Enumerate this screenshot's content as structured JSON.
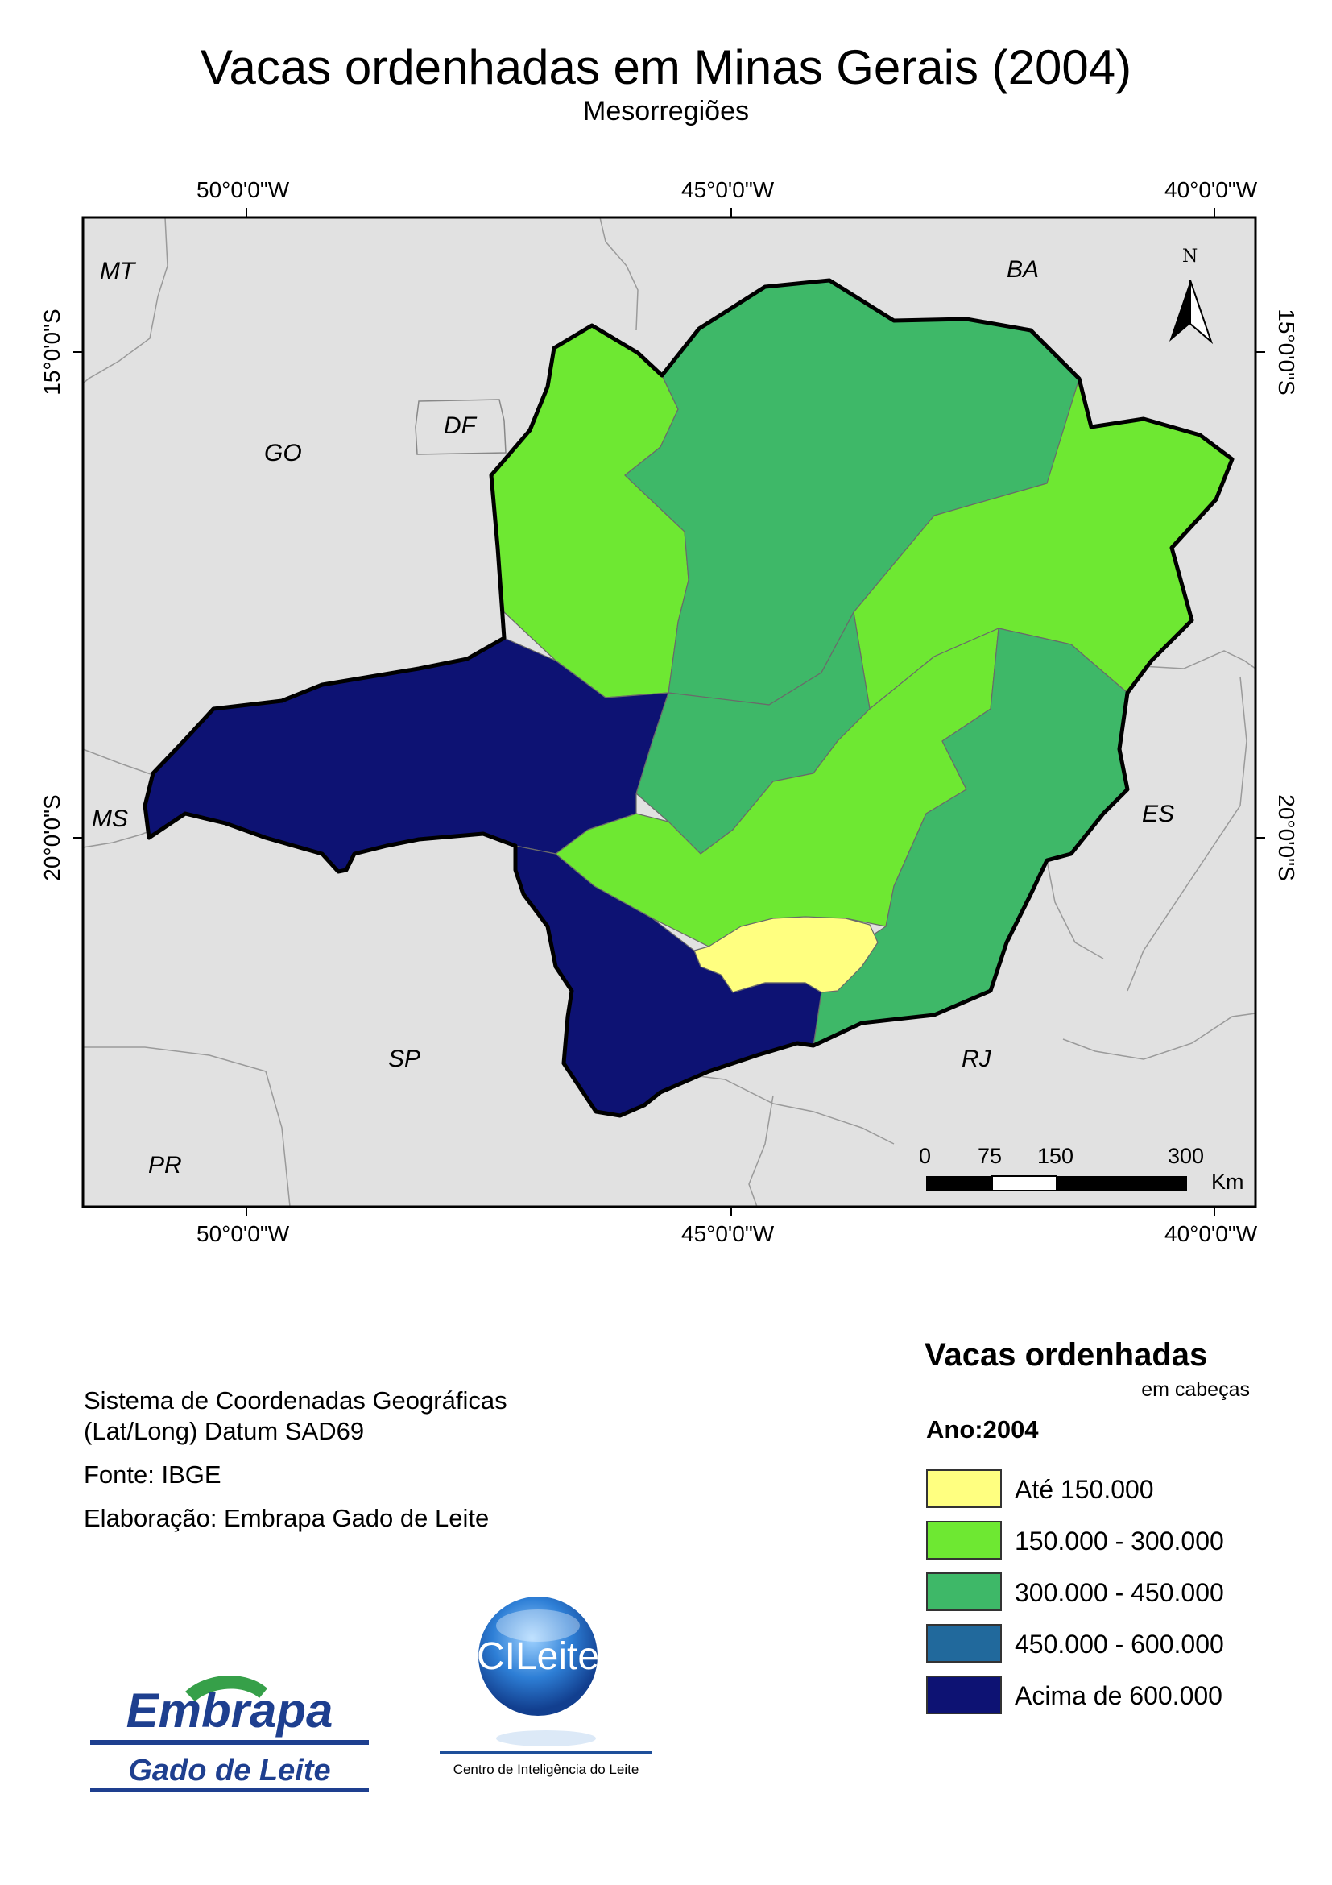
{
  "title": "Vacas ordenhadas em Minas Gerais (2004)",
  "subtitle": "Mesorregiões",
  "graticule": {
    "longitudes": [
      "50°0'0\"W",
      "45°0'0\"W",
      "40°0'0\"W"
    ],
    "latitudes": [
      "15°0'0\"S",
      "20°0'0\"S"
    ]
  },
  "states": {
    "MT": "MT",
    "BA": "BA",
    "GO": "GO",
    "DF": "DF",
    "MS": "MS",
    "ES": "ES",
    "SP": "SP",
    "RJ": "RJ",
    "PR": "PR"
  },
  "north_label": "N",
  "scale_bar": {
    "ticks": [
      "0",
      "75",
      "150",
      "300"
    ],
    "unit": "Km"
  },
  "notes": {
    "coord_line1": "Sistema de Coordenadas Geográficas",
    "coord_line2": "(Lat/Long) Datum SAD69",
    "source": "Fonte: IBGE",
    "author": "Elaboração: Embrapa Gado de Leite"
  },
  "legend": {
    "title": "Vacas ordenhadas",
    "unit": "em cabeças",
    "year": "Ano:2004",
    "classes": [
      {
        "label": "Até 150.000",
        "color": "#ffff80"
      },
      {
        "label": "150.000 - 300.000",
        "color": "#6ee832"
      },
      {
        "label": "300.000 - 450.000",
        "color": "#3eb868"
      },
      {
        "label": "450.000 - 600.000",
        "color": "#21699c"
      },
      {
        "label": "Acima de 600.000",
        "color": "#0d1273"
      }
    ]
  },
  "logos": {
    "embrapa_word": "Embrapa",
    "embrapa_sub": "Gado de Leite",
    "cileite_word": "CILeite",
    "cileite_sub": "Centro de Inteligência do Leite"
  }
}
